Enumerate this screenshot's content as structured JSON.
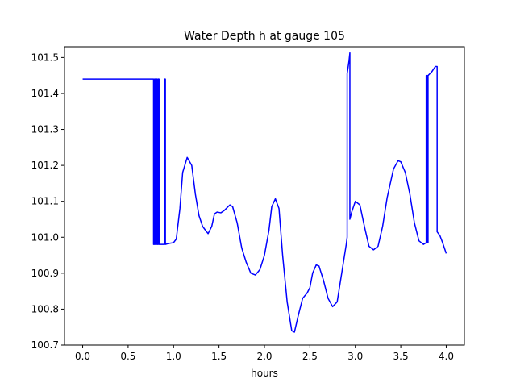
{
  "chart_data": {
    "type": "line",
    "title": "Water Depth h at gauge 105",
    "xlabel": "hours",
    "ylabel": "",
    "xlim": [
      -0.2,
      4.2
    ],
    "ylim": [
      100.7,
      101.53
    ],
    "xticks": [
      0.0,
      0.5,
      1.0,
      1.5,
      2.0,
      2.5,
      3.0,
      3.5,
      4.0
    ],
    "xtick_labels": [
      "0.0",
      "0.5",
      "1.0",
      "1.5",
      "2.0",
      "2.5",
      "3.0",
      "3.5",
      "4.0"
    ],
    "yticks": [
      100.7,
      100.8,
      100.9,
      101.0,
      101.1,
      101.2,
      101.3,
      101.4,
      101.5
    ],
    "ytick_labels": [
      "100.7",
      "100.8",
      "100.9",
      "101.0",
      "101.1",
      "101.2",
      "101.3",
      "101.4",
      "101.5"
    ],
    "grid": false,
    "series": [
      {
        "color": "#0000ff",
        "x": [
          0.0,
          0.78,
          0.78,
          0.79,
          0.79,
          0.8,
          0.8,
          0.81,
          0.81,
          0.82,
          0.82,
          0.83,
          0.83,
          0.84,
          0.84,
          0.9,
          0.9,
          0.91,
          0.91,
          0.95,
          1.0,
          1.03,
          1.07,
          1.1,
          1.15,
          1.2,
          1.24,
          1.28,
          1.32,
          1.38,
          1.42,
          1.45,
          1.48,
          1.52,
          1.56,
          1.62,
          1.65,
          1.7,
          1.75,
          1.8,
          1.85,
          1.9,
          1.95,
          2.0,
          2.05,
          2.08,
          2.12,
          2.16,
          2.2,
          2.25,
          2.3,
          2.33,
          2.37,
          2.42,
          2.47,
          2.5,
          2.53,
          2.57,
          2.6,
          2.65,
          2.7,
          2.75,
          2.8,
          2.85,
          2.9,
          2.91,
          2.91,
          2.93,
          2.94,
          2.94,
          2.96,
          3.0,
          3.05,
          3.1,
          3.15,
          3.2,
          3.25,
          3.3,
          3.35,
          3.42,
          3.47,
          3.5,
          3.55,
          3.6,
          3.65,
          3.7,
          3.75,
          3.78,
          3.78,
          3.79,
          3.79,
          3.8,
          3.8,
          3.84,
          3.88,
          3.9,
          3.9,
          3.93,
          3.96,
          4.0
        ],
        "y": [
          101.44,
          101.44,
          100.98,
          100.98,
          101.44,
          101.44,
          100.98,
          100.98,
          101.44,
          101.44,
          100.98,
          100.98,
          101.44,
          101.44,
          100.98,
          100.98,
          101.44,
          101.44,
          100.98,
          100.983,
          100.985,
          100.995,
          101.08,
          101.18,
          101.222,
          101.2,
          101.12,
          101.06,
          101.03,
          101.01,
          101.03,
          101.065,
          101.07,
          101.068,
          101.075,
          101.09,
          101.085,
          101.04,
          100.97,
          100.93,
          100.9,
          100.895,
          100.91,
          100.95,
          101.02,
          101.085,
          101.107,
          101.08,
          100.95,
          100.82,
          100.74,
          100.736,
          100.78,
          100.83,
          100.845,
          100.86,
          100.9,
          100.923,
          100.92,
          100.88,
          100.83,
          100.807,
          100.82,
          100.9,
          100.98,
          101.0,
          101.455,
          101.49,
          101.513,
          101.05,
          101.07,
          101.1,
          101.09,
          101.03,
          100.975,
          100.965,
          100.975,
          101.03,
          101.11,
          101.19,
          101.213,
          101.21,
          101.18,
          101.12,
          101.04,
          100.99,
          100.98,
          100.985,
          101.45,
          101.45,
          100.985,
          100.985,
          101.45,
          101.46,
          101.475,
          101.475,
          101.015,
          101.005,
          100.985,
          100.955
        ]
      }
    ]
  }
}
